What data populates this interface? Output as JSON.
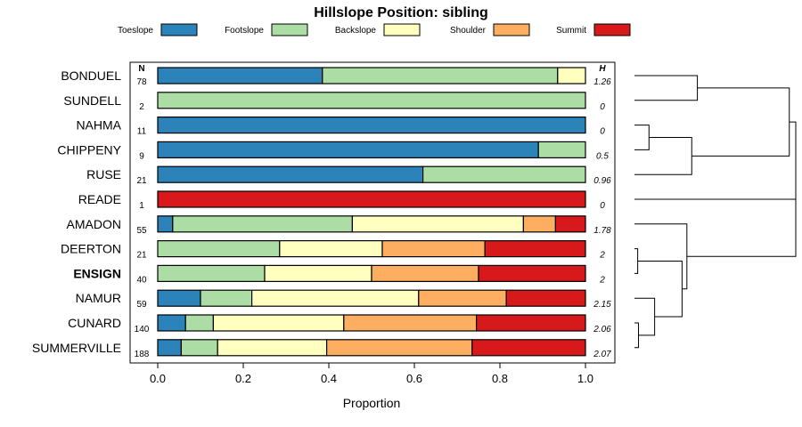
{
  "chart_data": {
    "type": "bar",
    "orientation": "horizontal",
    "stacked": true,
    "title": "Hillslope Position: sibling",
    "xlabel": "Proportion",
    "ylabel": "",
    "xlim": [
      0,
      1
    ],
    "x_ticks": [
      "0.0",
      "0.2",
      "0.4",
      "0.6",
      "0.8",
      "1.0"
    ],
    "n_header": "N",
    "h_header": "H",
    "legend": {
      "placement": "top",
      "items": [
        {
          "name": "Toeslope",
          "color": "#2b83ba"
        },
        {
          "name": "Footslope",
          "color": "#abdda4"
        },
        {
          "name": "Backslope",
          "color": "#ffffbf"
        },
        {
          "name": "Shoulder",
          "color": "#fdae61"
        },
        {
          "name": "Summit",
          "color": "#d7191c"
        }
      ]
    },
    "highlight": "ENSIGN",
    "categories": [
      "BONDUEL",
      "SUNDELL",
      "NAHMA",
      "CHIPPENY",
      "RUSE",
      "READE",
      "AMADON",
      "DEERTON",
      "ENSIGN",
      "NAMUR",
      "CUNARD",
      "SUMMERVILLE"
    ],
    "n": [
      "78",
      "2",
      "11",
      "9",
      "21",
      "1",
      "55",
      "21",
      "40",
      "59",
      "140",
      "188"
    ],
    "h": [
      "1.26",
      "0",
      "0",
      "0.5",
      "0.96",
      "0",
      "1.78",
      "2",
      "2",
      "2.15",
      "2.06",
      "2.07"
    ],
    "series": [
      {
        "name": "Toeslope",
        "values": [
          0.385,
          0,
          1,
          0.89,
          0.62,
          0,
          0.035,
          0,
          0,
          0.1,
          0.065,
          0.055
        ]
      },
      {
        "name": "Footslope",
        "values": [
          0.55,
          1,
          0,
          0.11,
          0.38,
          0,
          0.42,
          0.285,
          0.25,
          0.12,
          0.065,
          0.085
        ]
      },
      {
        "name": "Backslope",
        "values": [
          0.065,
          0,
          0,
          0,
          0,
          0,
          0.4,
          0.24,
          0.25,
          0.39,
          0.305,
          0.255
        ]
      },
      {
        "name": "Shoulder",
        "values": [
          0,
          0,
          0,
          0,
          0,
          0,
          0.075,
          0.24,
          0.25,
          0.205,
          0.31,
          0.34
        ]
      },
      {
        "name": "Summit",
        "values": [
          0,
          0,
          0,
          0,
          0,
          1,
          0.07,
          0.235,
          0.25,
          0.185,
          0.255,
          0.265
        ]
      }
    ],
    "dendrogram": {
      "order": [
        "BONDUEL",
        "SUNDELL",
        "NAHMA",
        "CHIPPENY",
        "RUSE",
        "READE",
        "AMADON",
        "DEERTON",
        "ENSIGN",
        "NAMUR",
        "CUNARD",
        "SUMMERVILLE"
      ],
      "merges": [
        {
          "a": "DEERTON",
          "b": "ENSIGN",
          "height": 0.02
        },
        {
          "a": "CUNARD",
          "b": "SUMMERVILLE",
          "height": 0.025
        },
        {
          "a": "NAHMA",
          "b": "CHIPPENY",
          "height": 0.09
        },
        {
          "a": "NAMUR",
          "b": "CUNARD+SUMMERVILLE",
          "height": 0.125
        },
        {
          "a": "DEERTON+ENSIGN",
          "b": "NAMUR+CUNARD+SUMMERVILLE",
          "height": 0.295
        },
        {
          "a": "AMADON",
          "b": "DEERTON+ENSIGN+NAMUR+CUNARD+SUMMERVILLE",
          "height": 0.325
        },
        {
          "a": "NAHMA+CHIPPENY",
          "b": "RUSE",
          "height": 0.355
        },
        {
          "a": "BONDUEL",
          "b": "SUNDELL",
          "height": 0.39
        },
        {
          "a": "BONDUEL+SUNDELL",
          "b": "NAHMA+CHIPPENY+RUSE",
          "height": 0.96
        },
        {
          "a": "ALL_TOP",
          "b": "READE",
          "height": 1.0
        },
        {
          "a": "ROOT_LEFT",
          "b": "AMADON_GROUP",
          "height": 1.0
        }
      ]
    }
  }
}
